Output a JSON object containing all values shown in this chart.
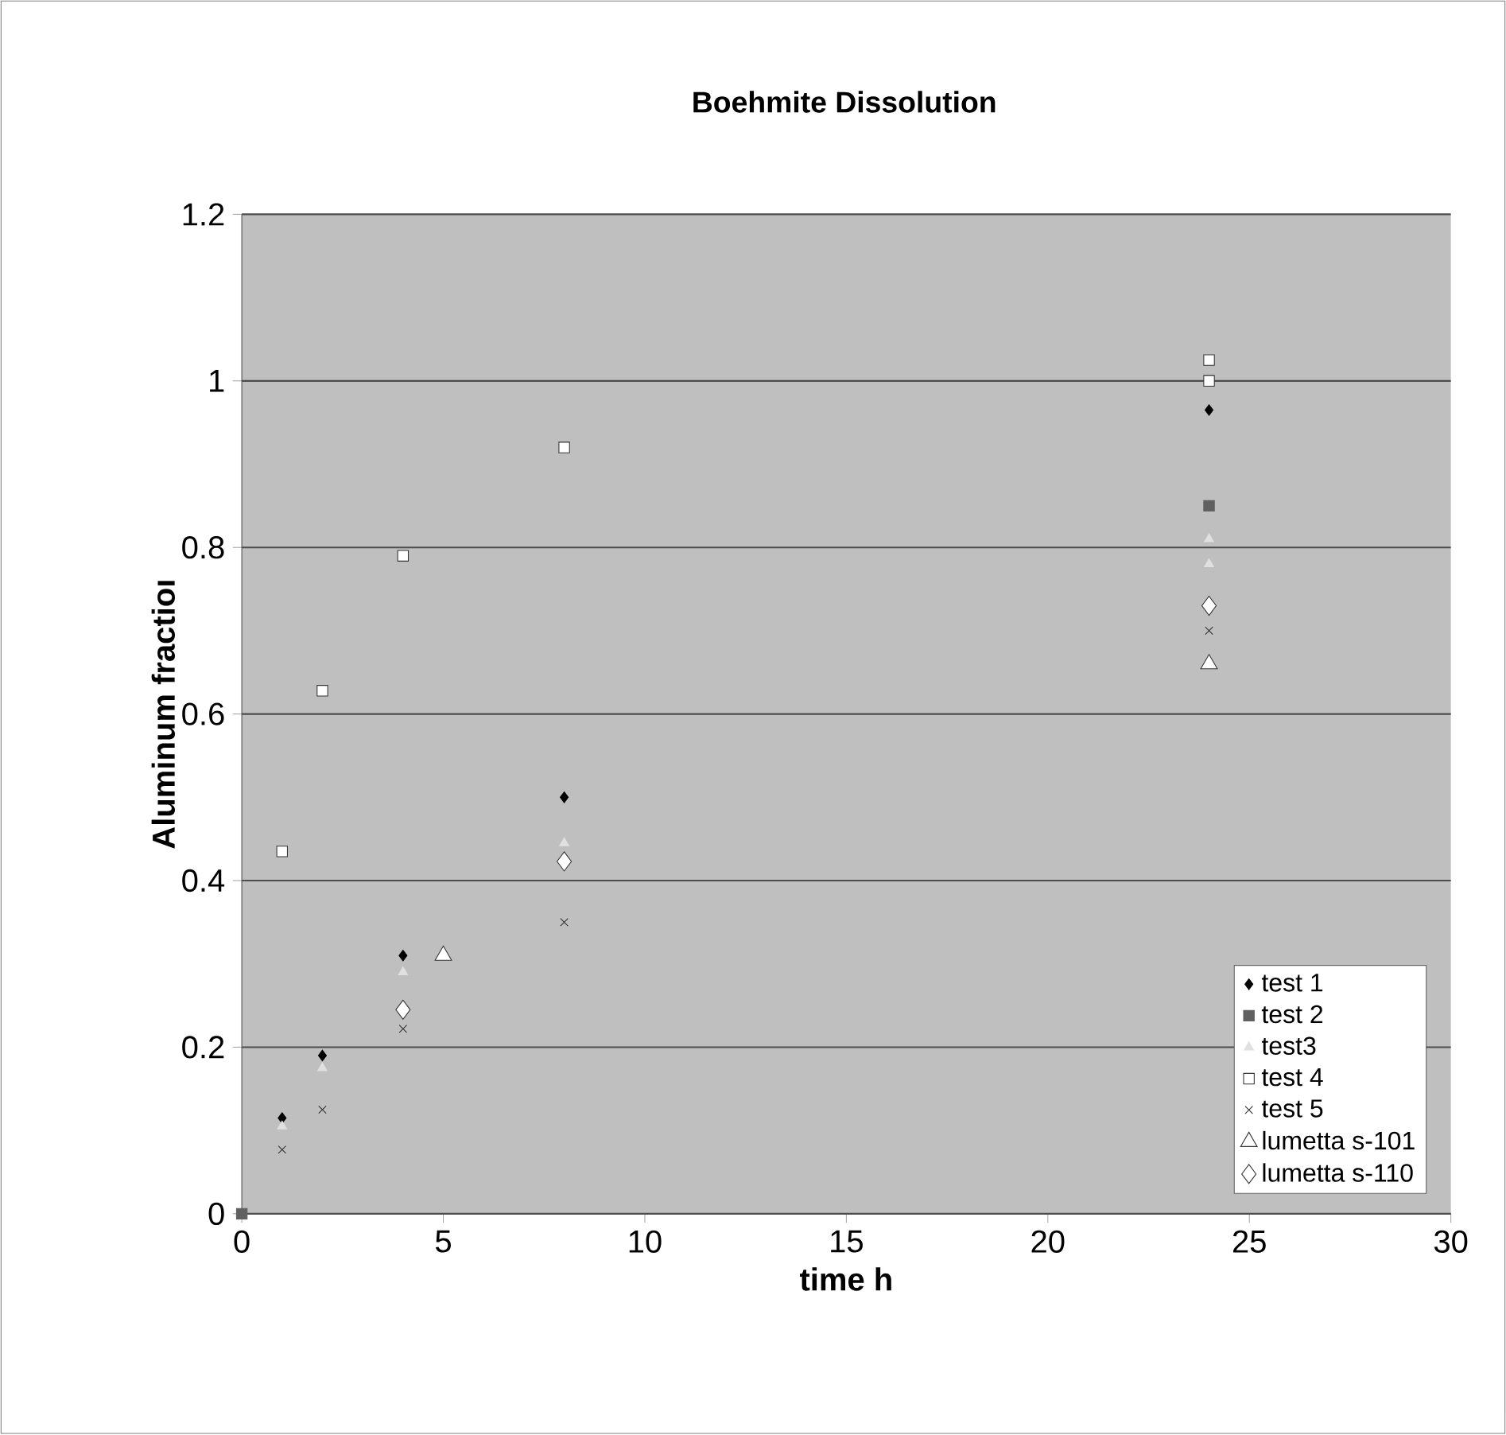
{
  "chart_data": {
    "type": "scatter",
    "title": "Boehmite Dissolution",
    "xlabel": "time h",
    "ylabel": "Aluminum fractioı",
    "xlim": [
      0,
      30
    ],
    "xticks": [
      0,
      5,
      10,
      15,
      20,
      25,
      30
    ],
    "ylim": [
      0,
      1.2
    ],
    "yticks": [
      0,
      0.2,
      0.4,
      0.6,
      0.8,
      1,
      1.2
    ],
    "grid": "y",
    "legend": "bottom right",
    "series": [
      {
        "name": "test 1",
        "color": "#000000",
        "marker": "diamond",
        "x": [
          1,
          2,
          4,
          8,
          24
        ],
        "values": [
          0.115,
          0.19,
          0.31,
          0.5,
          0.965
        ]
      },
      {
        "name": "test 2",
        "color": "#606060",
        "marker": "square",
        "x": [
          0,
          24
        ],
        "values": [
          0,
          0.85
        ]
      },
      {
        "name": "test3",
        "color": "#e0e0e0",
        "marker": "triangle",
        "x": [
          1,
          2,
          4,
          8,
          24,
          24
        ],
        "values": [
          0.105,
          0.175,
          0.29,
          0.445,
          0.81,
          0.78
        ]
      },
      {
        "name": "test 4",
        "color": "#ffffff",
        "marker": "square",
        "x": [
          1,
          2,
          4,
          8,
          24,
          24
        ],
        "values": [
          0.435,
          0.628,
          0.79,
          0.92,
          1.025,
          1.0
        ]
      },
      {
        "name": "test 5",
        "color": "#303030",
        "marker": "cross",
        "x": [
          1,
          2,
          4,
          8,
          24
        ],
        "values": [
          0.077,
          0.125,
          0.222,
          0.35,
          0.7
        ]
      },
      {
        "name": "lumetta s-101",
        "color": "#ffffff",
        "marker": "triangle",
        "x": [
          5,
          24
        ],
        "values": [
          0.31,
          0.66
        ]
      },
      {
        "name": "lumetta s-110",
        "color": "#ffffff",
        "marker": "diamond",
        "x": [
          4,
          8,
          24
        ],
        "values": [
          0.245,
          0.423,
          0.73
        ]
      }
    ]
  }
}
